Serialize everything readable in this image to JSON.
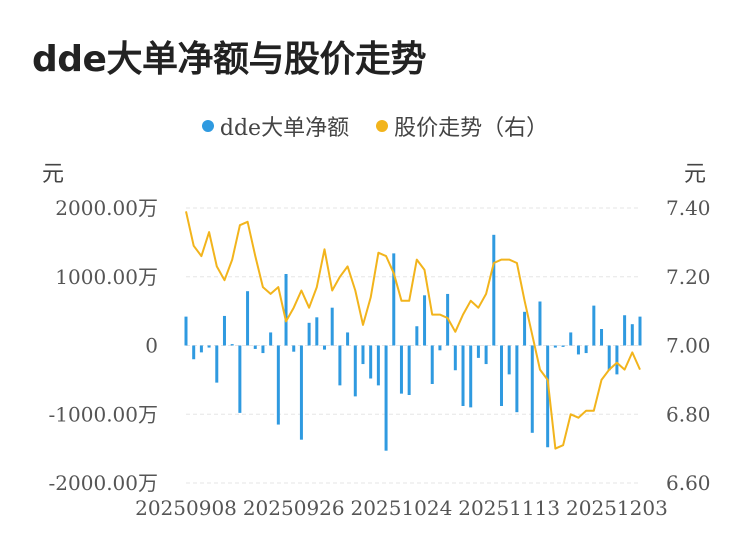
{
  "title": "dde大单净额与股价走势",
  "legend": {
    "series1": "dde大单净额",
    "series2": "股价走势（右）"
  },
  "units": {
    "left": "元",
    "right": "元"
  },
  "colors": {
    "bar": "#2f9ae0",
    "line": "#f2b41c",
    "grid": "#e6e6e6"
  },
  "chart_data": {
    "type": "bar+line",
    "left_axis": {
      "ticks": [
        "2000.00万",
        "1000.00万",
        "0",
        "-1000.00万",
        "-2000.00万"
      ],
      "tick_values": [
        2000,
        1000,
        0,
        -1000,
        -2000
      ],
      "ylim": [
        -2000,
        2000
      ]
    },
    "right_axis": {
      "ticks": [
        "7.40",
        "7.20",
        "7.00",
        "6.80",
        "6.60"
      ],
      "tick_values": [
        7.4,
        7.2,
        7.0,
        6.8,
        6.6
      ],
      "ylim": [
        6.6,
        7.4
      ]
    },
    "x_tick_labels": [
      "20250908",
      "20250926",
      "20251024",
      "20251113",
      "20251203"
    ],
    "x_tick_indices": [
      0,
      14,
      28,
      42,
      56
    ],
    "series": [
      {
        "name": "dde大单净额",
        "type": "bar",
        "values": [
          420,
          -200,
          -100,
          -30,
          -540,
          430,
          20,
          -980,
          790,
          -50,
          -110,
          190,
          -1150,
          1040,
          -90,
          -1370,
          330,
          410,
          -60,
          550,
          -580,
          190,
          -740,
          -270,
          -480,
          -580,
          -1530,
          1340,
          -700,
          -720,
          280,
          730,
          -560,
          -70,
          750,
          -360,
          -880,
          -900,
          -180,
          -270,
          1610,
          -880,
          -420,
          -970,
          490,
          -1270,
          640,
          -1480,
          -30,
          -20,
          190,
          -130,
          -110,
          580,
          240,
          -360,
          -420,
          440,
          310,
          420
        ]
      },
      {
        "name": "股价走势（右）",
        "type": "line",
        "values": [
          7.39,
          7.29,
          7.26,
          7.33,
          7.23,
          7.19,
          7.25,
          7.35,
          7.36,
          7.26,
          7.17,
          7.15,
          7.17,
          7.07,
          7.11,
          7.16,
          7.11,
          7.17,
          7.28,
          7.16,
          7.2,
          7.23,
          7.16,
          7.06,
          7.14,
          7.27,
          7.26,
          7.21,
          7.13,
          7.13,
          7.25,
          7.22,
          7.09,
          7.09,
          7.08,
          7.04,
          7.09,
          7.13,
          7.11,
          7.15,
          7.24,
          7.25,
          7.25,
          7.24,
          7.13,
          7.03,
          6.93,
          6.9,
          6.7,
          6.71,
          6.8,
          6.79,
          6.81,
          6.81,
          6.9,
          6.93,
          6.95,
          6.93,
          6.98,
          6.93
        ]
      }
    ]
  }
}
